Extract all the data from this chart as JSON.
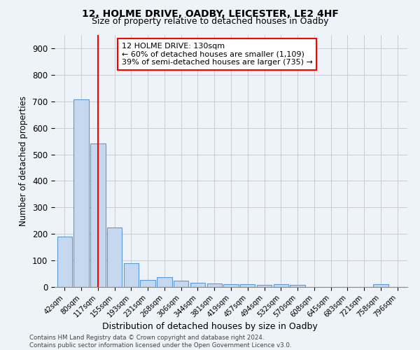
{
  "title1": "12, HOLME DRIVE, OADBY, LEICESTER, LE2 4HF",
  "title2": "Size of property relative to detached houses in Oadby",
  "xlabel": "Distribution of detached houses by size in Oadby",
  "ylabel": "Number of detached properties",
  "categories": [
    "42sqm",
    "80sqm",
    "117sqm",
    "155sqm",
    "193sqm",
    "231sqm",
    "268sqm",
    "306sqm",
    "344sqm",
    "381sqm",
    "419sqm",
    "457sqm",
    "494sqm",
    "532sqm",
    "570sqm",
    "608sqm",
    "645sqm",
    "683sqm",
    "721sqm",
    "758sqm",
    "796sqm"
  ],
  "values": [
    190,
    707,
    540,
    224,
    91,
    27,
    37,
    23,
    15,
    13,
    11,
    11,
    8,
    10,
    7,
    0,
    0,
    0,
    0,
    10,
    0
  ],
  "bar_color": "#c5d8f0",
  "bar_edge_color": "#5b9bd5",
  "grid_color": "#cccccc",
  "bg_color": "#eef2f9",
  "vline_color": "red",
  "vline_pos": 2.5,
  "annotation_text": "12 HOLME DRIVE: 130sqm\n← 60% of detached houses are smaller (1,109)\n39% of semi-detached houses are larger (735) →",
  "annotation_box_color": "white",
  "annotation_box_edge": "red",
  "footer": "Contains HM Land Registry data © Crown copyright and database right 2024.\nContains public sector information licensed under the Open Government Licence v3.0.",
  "ylim": [
    0,
    950
  ],
  "yticks": [
    0,
    100,
    200,
    300,
    400,
    500,
    600,
    700,
    800,
    900
  ]
}
